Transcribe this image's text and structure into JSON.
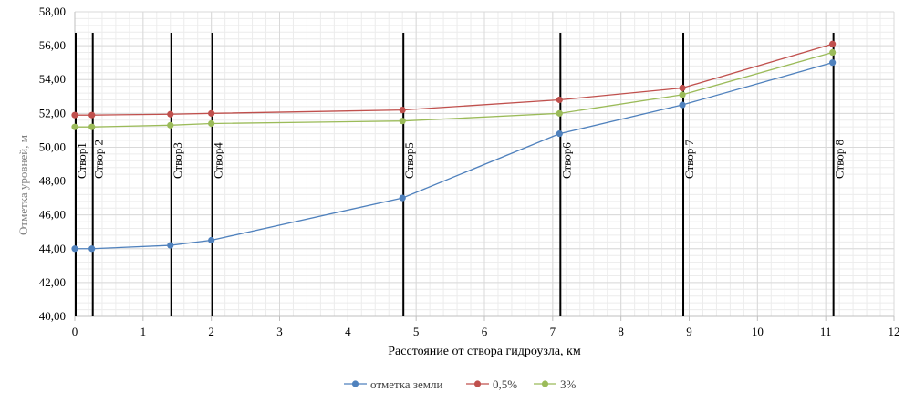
{
  "chart_data": {
    "type": "line",
    "title": "",
    "xlabel": "Расстояние от створа гидроузла, км",
    "ylabel": "Отметка уровней, м",
    "xlim": [
      0,
      12
    ],
    "ylim": [
      40,
      58
    ],
    "x_ticks": [
      "0",
      "1",
      "2",
      "3",
      "4",
      "5",
      "6",
      "7",
      "8",
      "9",
      "10",
      "11",
      "12"
    ],
    "y_ticks": [
      "40,00",
      "42,00",
      "44,00",
      "46,00",
      "48,00",
      "50,00",
      "52,00",
      "54,00",
      "56,00",
      "58,00"
    ],
    "grid": true,
    "legend_position": "bottom",
    "x": [
      0,
      0.25,
      1.4,
      2.0,
      4.8,
      7.1,
      8.9,
      11.1
    ],
    "series": [
      {
        "name": "отметка земли",
        "color": "#4f81bd",
        "values": [
          44.0,
          44.0,
          44.2,
          44.5,
          47.0,
          50.8,
          52.5,
          55.0
        ]
      },
      {
        "name": "0,5%",
        "color": "#c0504d",
        "values": [
          51.9,
          51.9,
          51.95,
          52.0,
          52.2,
          52.8,
          53.5,
          56.1
        ]
      },
      {
        "name": "3%",
        "color": "#9bbb59",
        "values": [
          51.2,
          51.2,
          51.3,
          51.4,
          51.55,
          52.0,
          53.1,
          55.6
        ]
      }
    ],
    "sections": [
      {
        "label": "Створ1",
        "x": 0.0
      },
      {
        "label": "Створ 2",
        "x": 0.25
      },
      {
        "label": "Створ3",
        "x": 1.4
      },
      {
        "label": "Створ4",
        "x": 2.0
      },
      {
        "label": "Створ5",
        "x": 4.8
      },
      {
        "label": "Створ6",
        "x": 7.1
      },
      {
        "label": "Створ 7",
        "x": 8.9
      },
      {
        "label": "Створ 8",
        "x": 11.1
      }
    ]
  }
}
